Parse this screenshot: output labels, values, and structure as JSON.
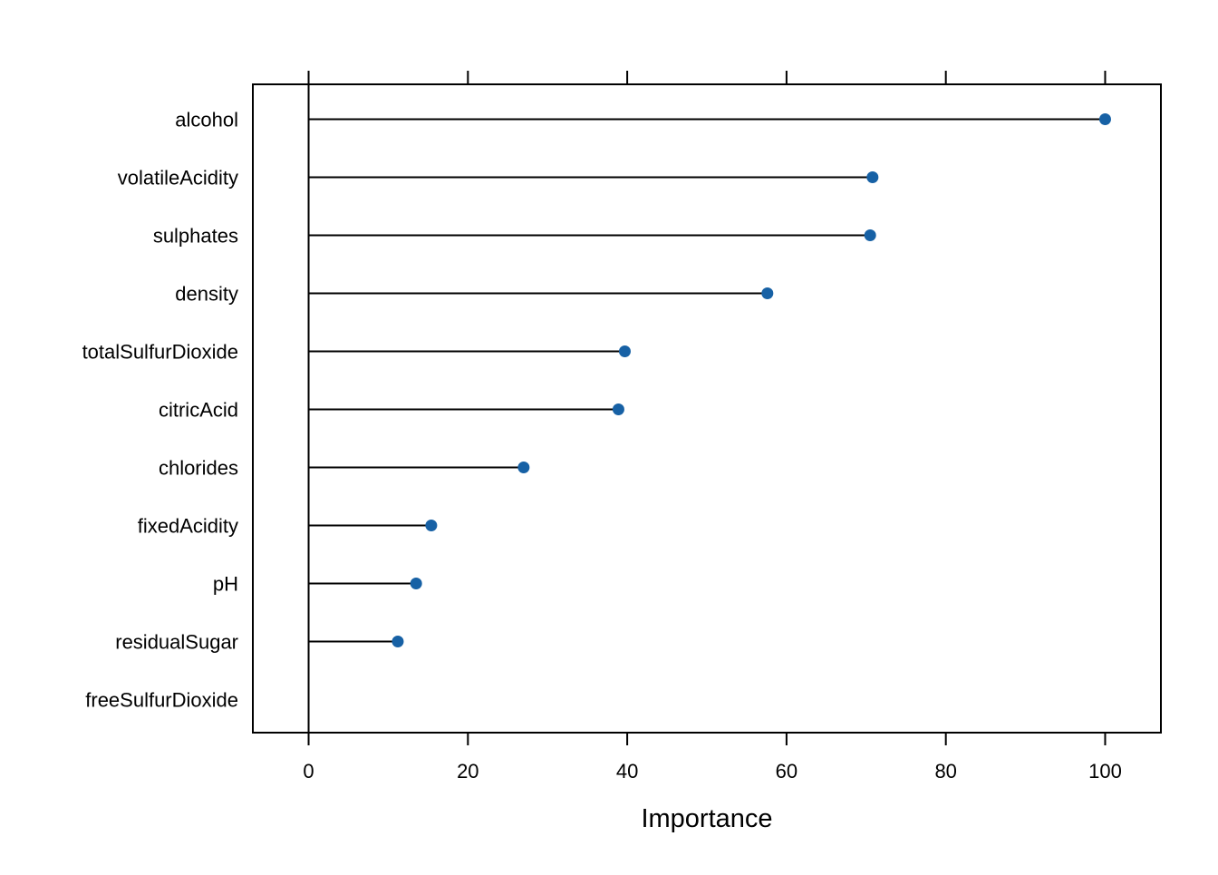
{
  "chart_data": {
    "type": "dot",
    "title": "",
    "xlabel": "Importance",
    "ylabel": "",
    "xlim": [
      -7,
      107
    ],
    "x_ticks": [
      0,
      20,
      40,
      60,
      80,
      100
    ],
    "x_tick_labels": [
      "0",
      "20",
      "40",
      "60",
      "80",
      "100"
    ],
    "categories": [
      "alcohol",
      "volatileAcidity",
      "sulphates",
      "density",
      "totalSulfurDioxide",
      "citricAcid",
      "chlorides",
      "fixedAcidity",
      "pH",
      "residualSugar",
      "freeSulfurDioxide"
    ],
    "values": [
      100,
      70.8,
      70.5,
      57.6,
      39.7,
      38.9,
      27.0,
      15.4,
      13.5,
      11.2,
      0
    ],
    "grid": false,
    "legend": "none",
    "colors": {
      "point": "#1761a5",
      "line": "#000000",
      "frame": "#000000"
    }
  }
}
